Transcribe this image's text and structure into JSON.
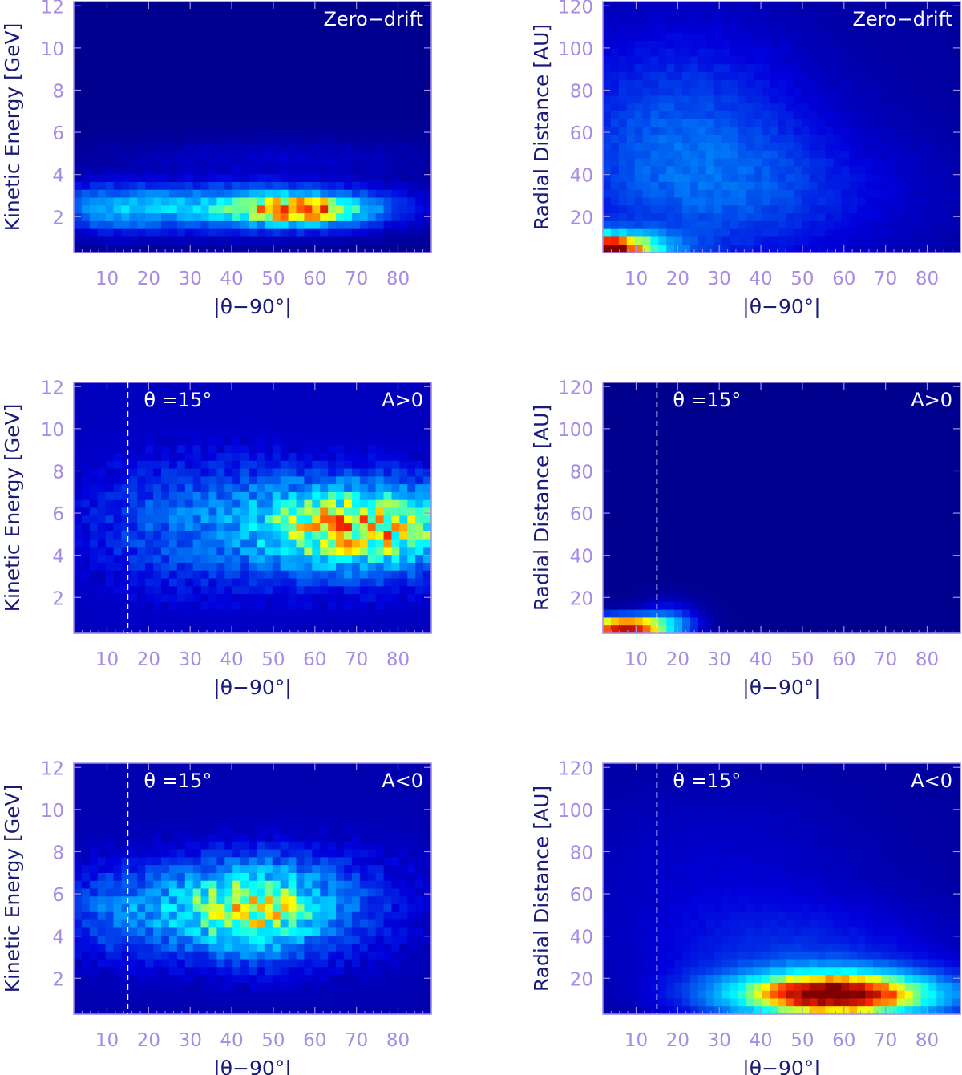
{
  "colors": {
    "frame": "#a58ce6",
    "tick_label": "#a58ce6",
    "axis_title": "#1a1a7a",
    "inset_text": "#ffffff",
    "colormap": [
      "#000080",
      "#0000ff",
      "#00ffff",
      "#ffff00",
      "#ff0000",
      "#800000"
    ]
  },
  "chart_data": [
    {
      "type": "heatmap",
      "panel": "top-left",
      "label": "Zero−drift",
      "marker_label": "",
      "xlabel": "|θ−90°|",
      "ylabel": "Kinetic Energy [GeV]",
      "xlim": [
        2,
        88
      ],
      "ylim": [
        0.3,
        12.2
      ],
      "xticks": [
        "10",
        "20",
        "30",
        "40",
        "50",
        "60",
        "70",
        "80"
      ],
      "yticks": [
        "2",
        "4",
        "6",
        "8",
        "10",
        "12"
      ],
      "background_level": 0.02,
      "blobs": [
        {
          "x": 45,
          "y": 2.4,
          "sx": 24,
          "sy": 0.75,
          "a": 0.45
        },
        {
          "x": 10,
          "y": 2.4,
          "sx": 10,
          "sy": 0.8,
          "a": 0.22
        },
        {
          "x": 58,
          "y": 2.3,
          "sx": 9,
          "sy": 0.45,
          "a": 0.5
        },
        {
          "x": 50,
          "y": 4.8,
          "sx": 30,
          "sy": 0.7,
          "a": 0.07
        }
      ],
      "noise": 0.18,
      "seed": 11
    },
    {
      "type": "heatmap",
      "panel": "top-right",
      "label": "Zero−drift",
      "marker_label": "",
      "xlabel": "|θ−90°|",
      "ylabel": "Radial Distance [AU]",
      "xlim": [
        2,
        88
      ],
      "ylim": [
        3,
        122
      ],
      "xticks": [
        "10",
        "20",
        "30",
        "40",
        "50",
        "60",
        "70",
        "80"
      ],
      "yticks": [
        "20",
        "40",
        "60",
        "80",
        "100",
        "120"
      ],
      "background_level": 0.04,
      "blobs": [
        {
          "x": 2,
          "y": 5,
          "sx": 10,
          "sy": 5,
          "a": 0.95
        },
        {
          "x": 20,
          "y": 55,
          "sx": 22,
          "sy": 38,
          "a": 0.2
        },
        {
          "x": 45,
          "y": 30,
          "sx": 25,
          "sy": 22,
          "a": 0.1
        }
      ],
      "noise": 0.1,
      "seed": 23
    },
    {
      "type": "heatmap",
      "panel": "middle-left",
      "label": "A>0",
      "marker_label": "θ =15°",
      "marker_x": 15,
      "xlabel": "|θ−90°|",
      "ylabel": "Kinetic Energy [GeV]",
      "xlim": [
        2,
        88
      ],
      "ylim": [
        0.3,
        12.2
      ],
      "xticks": [
        "10",
        "20",
        "30",
        "40",
        "50",
        "60",
        "70",
        "80"
      ],
      "yticks": [
        "2",
        "4",
        "6",
        "8",
        "10",
        "12"
      ],
      "background_level": 0.08,
      "blobs": [
        {
          "x": 74,
          "y": 5.3,
          "sx": 16,
          "sy": 1.4,
          "a": 0.6
        },
        {
          "x": 30,
          "y": 5.5,
          "sx": 16,
          "sy": 2,
          "a": 0.18
        },
        {
          "x": 55,
          "y": 5.5,
          "sx": 12,
          "sy": 1.6,
          "a": 0.15
        }
      ],
      "noise": 0.28,
      "seed": 37
    },
    {
      "type": "heatmap",
      "panel": "middle-right",
      "label": "A>0",
      "marker_label": "θ =15°",
      "marker_x": 15,
      "xlabel": "|θ−90°|",
      "ylabel": "Radial Distance [AU]",
      "xlim": [
        2,
        88
      ],
      "ylim": [
        3,
        122
      ],
      "xticks": [
        "10",
        "20",
        "30",
        "40",
        "50",
        "60",
        "70",
        "80"
      ],
      "yticks": [
        "20",
        "40",
        "60",
        "80",
        "100",
        "120"
      ],
      "background_level": 0.02,
      "blobs": [
        {
          "x": 7,
          "y": 6,
          "sx": 8,
          "sy": 3.5,
          "a": 0.95
        },
        {
          "x": 18,
          "y": 10,
          "sx": 5,
          "sy": 6,
          "a": 0.18
        }
      ],
      "noise": 0.0,
      "seed": 41
    },
    {
      "type": "heatmap",
      "panel": "bottom-left",
      "label": "A<0",
      "marker_label": "θ =15°",
      "marker_x": 15,
      "xlabel": "|θ−90°|",
      "ylabel": "Kinetic Energy [GeV]",
      "xlim": [
        2,
        88
      ],
      "ylim": [
        0.3,
        12.2
      ],
      "xticks": [
        "10",
        "20",
        "30",
        "40",
        "50",
        "60",
        "70",
        "80"
      ],
      "yticks": [
        "2",
        "4",
        "6",
        "8",
        "10",
        "12"
      ],
      "background_level": 0.06,
      "blobs": [
        {
          "x": 44,
          "y": 5.3,
          "sx": 13,
          "sy": 1.5,
          "a": 0.55
        },
        {
          "x": 15,
          "y": 5.2,
          "sx": 12,
          "sy": 1.5,
          "a": 0.22
        },
        {
          "x": 65,
          "y": 5.5,
          "sx": 15,
          "sy": 1.8,
          "a": 0.12
        }
      ],
      "noise": 0.28,
      "seed": 53
    },
    {
      "type": "heatmap",
      "panel": "bottom-right",
      "label": "A<0",
      "marker_label": "θ =15°",
      "marker_x": 15,
      "xlabel": "|θ−90°|",
      "ylabel": "Radial Distance [AU]",
      "xlim": [
        2,
        88
      ],
      "ylim": [
        3,
        122
      ],
      "xticks": [
        "10",
        "20",
        "30",
        "40",
        "50",
        "60",
        "70",
        "80"
      ],
      "yticks": [
        "20",
        "40",
        "60",
        "80",
        "100",
        "120"
      ],
      "background_level": 0.04,
      "blobs": [
        {
          "x": 58,
          "y": 12,
          "sx": 18,
          "sy": 8,
          "a": 0.95
        },
        {
          "x": 50,
          "y": 30,
          "sx": 25,
          "sy": 18,
          "a": 0.12
        },
        {
          "x": 30,
          "y": 70,
          "sx": 25,
          "sy": 30,
          "a": 0.06
        }
      ],
      "noise": 0.05,
      "seed": 67
    }
  ]
}
